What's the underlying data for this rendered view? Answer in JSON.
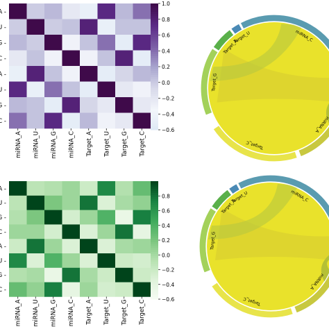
{
  "chart_data": [
    {
      "type": "heatmap",
      "colormap": "purple",
      "row_labels": [
        "miRNA_A",
        "miRNA_U",
        "miRNA_G",
        "miRNA_C",
        "Target_A",
        "Target_U",
        "Target_G",
        "Target_C"
      ],
      "col_labels": [
        "miRNA_A",
        "miRNA_U",
        "miRNA_G",
        "miRNA_C",
        "Target_A",
        "Target_U",
        "Target_G",
        "Target_C"
      ],
      "colorbar_ticks": [
        "1.0",
        "0.8",
        "0.6",
        "0.4",
        "0.2",
        "0.0",
        "−0.2",
        "−0.4",
        "−0.6"
      ],
      "vmin": -0.6,
      "vmax": 1.0,
      "values": [
        [
          1.0,
          0.0,
          0.1,
          -0.2,
          -0.45,
          0.75,
          0.1,
          0.4
        ],
        [
          0.0,
          1.0,
          0.0,
          0.05,
          0.8,
          -0.45,
          0.05,
          0.05
        ],
        [
          0.1,
          0.0,
          1.0,
          -0.3,
          0.05,
          0.4,
          -0.5,
          0.75
        ],
        [
          -0.2,
          0.05,
          -0.3,
          1.0,
          -0.3,
          0.05,
          0.8,
          -0.5
        ],
        [
          -0.45,
          0.8,
          0.05,
          -0.3,
          1.0,
          -0.5,
          -0.05,
          0.1
        ],
        [
          0.75,
          -0.45,
          0.4,
          0.05,
          -0.5,
          1.0,
          -0.2,
          -0.3
        ],
        [
          0.1,
          0.05,
          -0.5,
          0.8,
          -0.05,
          -0.2,
          1.0,
          -0.2
        ],
        [
          0.4,
          0.05,
          0.75,
          -0.5,
          0.1,
          -0.3,
          -0.2,
          1.0
        ]
      ]
    },
    {
      "type": "chord",
      "segments": [
        {
          "label": "miRNA_C",
          "color": "#5a9bb0"
        },
        {
          "label": "Target_U",
          "color": "#4a8ab5"
        },
        {
          "label": "Target_A",
          "color": "#5ab04a"
        },
        {
          "label": "Target_G",
          "color": "#a3d15a"
        },
        {
          "label": "Target_C",
          "color": "#e8e44a"
        },
        {
          "label": "miRNA_A",
          "color": "#c8c840"
        }
      ]
    },
    {
      "type": "heatmap",
      "colormap": "green",
      "row_labels": [
        "miRNA_A",
        "miRNA_U",
        "miRNA_G",
        "miRNA_C",
        "Target_A",
        "Target_U",
        "Target_G",
        "Target_C"
      ],
      "col_labels": [
        "miRNA_A",
        "miRNA_U",
        "miRNA_G",
        "miRNA_C",
        "Target_A",
        "Target_U",
        "Target_G",
        "Target_C"
      ],
      "colorbar_ticks": [
        "0.8",
        "0.6",
        "0.4",
        "0.2",
        "0.0",
        "−0.2",
        "−0.4",
        "−0.6"
      ],
      "vmin": -0.6,
      "vmax": 1.0,
      "values": [
        [
          1.0,
          -0.1,
          -0.05,
          0.05,
          -0.2,
          0.7,
          -0.05,
          0.3
        ],
        [
          -0.1,
          1.0,
          0.2,
          0.05,
          0.8,
          -0.3,
          0.0,
          0.1
        ],
        [
          -0.05,
          0.2,
          1.0,
          -0.25,
          0.05,
          0.4,
          -0.45,
          0.75
        ],
        [
          0.05,
          0.05,
          -0.25,
          1.0,
          -0.3,
          0.05,
          0.8,
          -0.4
        ],
        [
          -0.2,
          0.8,
          0.05,
          -0.3,
          1.0,
          -0.3,
          0.0,
          0.05
        ],
        [
          0.7,
          -0.3,
          0.4,
          0.05,
          -0.3,
          1.0,
          -0.2,
          -0.25
        ],
        [
          -0.05,
          0.0,
          -0.45,
          0.8,
          0.0,
          -0.2,
          1.0,
          -0.2
        ],
        [
          0.3,
          0.1,
          0.75,
          -0.4,
          0.05,
          -0.25,
          -0.2,
          1.0
        ]
      ]
    },
    {
      "type": "chord",
      "segments": [
        {
          "label": "miRNA_C",
          "color": "#5a9bb0"
        },
        {
          "label": "Target_U",
          "color": "#4a8ab5"
        },
        {
          "label": "Target_A",
          "color": "#5ab04a"
        },
        {
          "label": "Target_G",
          "color": "#a3d15a"
        },
        {
          "label": "Target_C",
          "color": "#e8e44a"
        },
        {
          "label": "miRNA_A",
          "color": "#c8c840"
        }
      ]
    }
  ]
}
